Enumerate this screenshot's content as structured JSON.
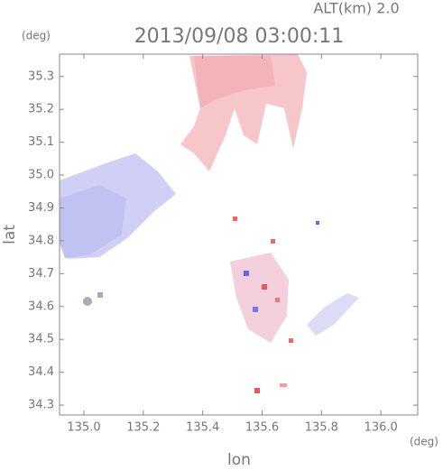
{
  "chart_data": {
    "type": "map",
    "title": "2013/09/08 03:00:11",
    "annotation": "ALT(km) 2.0",
    "xlabel": "lon",
    "ylabel": "lat",
    "xunit": "(deg)",
    "yunit": "(deg)",
    "xlim": [
      134.918,
      136.124
    ],
    "ylim": [
      34.27,
      35.368
    ],
    "xticks": [
      {
        "value": 135.0,
        "label": "135.0"
      },
      135.2,
      135.4,
      135.6,
      135.8,
      {
        "value": 136.0,
        "label": "136.0"
      }
    ],
    "yticks": [
      34.3,
      34.4,
      34.5,
      34.6,
      34.7,
      34.8,
      34.9,
      {
        "value": 35.0,
        "label": "35.0"
      },
      35.1,
      35.2,
      35.3
    ]
  }
}
